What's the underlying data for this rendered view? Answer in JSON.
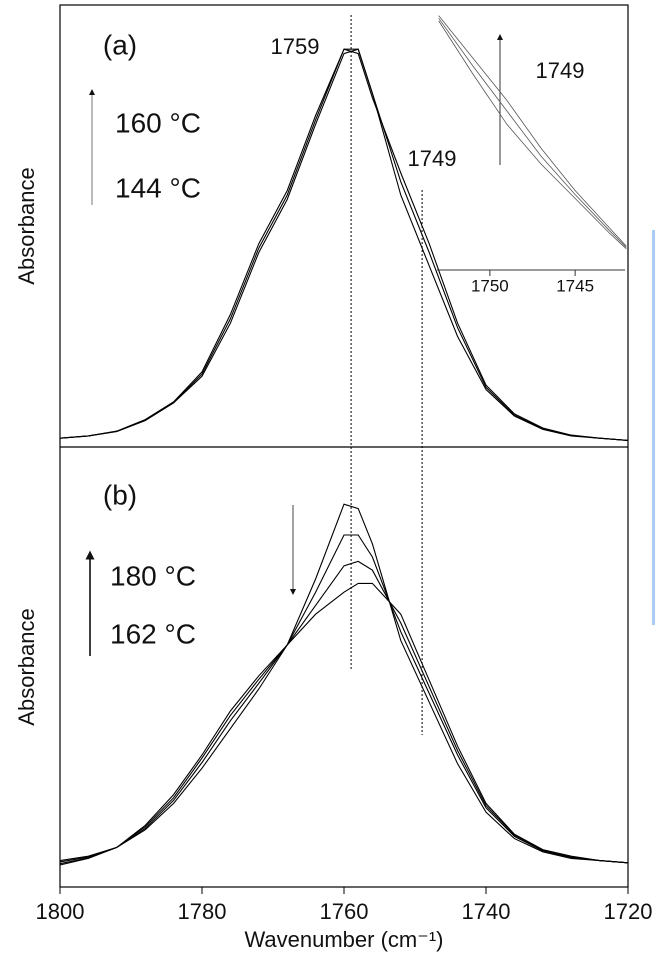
{
  "chart_data": [
    {
      "type": "line",
      "ylabel": "Absorbance",
      "annotations": [
        "(a)",
        "1759",
        "1749",
        "160 °C",
        "144 °C"
      ],
      "xlim": [
        1800,
        1720
      ],
      "ylim": [
        0,
        1
      ],
      "x": [
        1800,
        1796,
        1792,
        1788,
        1784,
        1780,
        1776,
        1772,
        1768,
        1764,
        1760,
        1758,
        1756,
        1752,
        1748,
        1744,
        1740,
        1736,
        1732,
        1728,
        1724,
        1720
      ],
      "series": [
        {
          "color": "#000000",
          "values": [
            0.02,
            0.025,
            0.035,
            0.06,
            0.1,
            0.16,
            0.28,
            0.44,
            0.56,
            0.73,
            0.89,
            0.9,
            0.8,
            0.57,
            0.41,
            0.25,
            0.13,
            0.07,
            0.04,
            0.025,
            0.02,
            0.015
          ]
        },
        {
          "color": "#000000",
          "values": [
            0.02,
            0.025,
            0.035,
            0.06,
            0.1,
            0.165,
            0.29,
            0.45,
            0.57,
            0.74,
            0.9,
            0.9,
            0.8,
            0.6,
            0.44,
            0.27,
            0.135,
            0.072,
            0.042,
            0.026,
            0.02,
            0.015
          ]
        },
        {
          "color": "#000000",
          "values": [
            0.02,
            0.025,
            0.036,
            0.062,
            0.102,
            0.17,
            0.3,
            0.46,
            0.58,
            0.75,
            0.9,
            0.89,
            0.79,
            0.62,
            0.46,
            0.28,
            0.14,
            0.075,
            0.043,
            0.027,
            0.02,
            0.015
          ]
        }
      ],
      "reference_lines_x": [
        1759,
        1749
      ]
    },
    {
      "type": "line",
      "ylabel": "Absorbance",
      "xlabel": "Wavenumber (cm⁻¹)",
      "annotations": [
        "(b)",
        "180 °C",
        "162 °C"
      ],
      "xlim": [
        1800,
        1720
      ],
      "ylim": [
        0,
        1
      ],
      "xticks": [
        1800,
        1780,
        1760,
        1740,
        1720
      ],
      "x": [
        1800,
        1796,
        1792,
        1788,
        1784,
        1780,
        1776,
        1772,
        1768,
        1764,
        1760,
        1758,
        1756,
        1752,
        1748,
        1744,
        1740,
        1736,
        1732,
        1728,
        1724,
        1720
      ],
      "series": [
        {
          "color": "#000000",
          "values": [
            0.06,
            0.07,
            0.09,
            0.13,
            0.19,
            0.27,
            0.36,
            0.45,
            0.55,
            0.7,
            0.87,
            0.86,
            0.78,
            0.56,
            0.42,
            0.28,
            0.17,
            0.11,
            0.08,
            0.065,
            0.06,
            0.055
          ]
        },
        {
          "color": "#000000",
          "values": [
            0.057,
            0.068,
            0.09,
            0.133,
            0.197,
            0.283,
            0.378,
            0.463,
            0.55,
            0.67,
            0.8,
            0.8,
            0.75,
            0.58,
            0.44,
            0.3,
            0.18,
            0.115,
            0.082,
            0.067,
            0.06,
            0.055
          ]
        },
        {
          "color": "#000000",
          "values": [
            0.053,
            0.066,
            0.09,
            0.137,
            0.203,
            0.293,
            0.39,
            0.472,
            0.55,
            0.64,
            0.73,
            0.74,
            0.72,
            0.6,
            0.455,
            0.31,
            0.185,
            0.118,
            0.083,
            0.068,
            0.06,
            0.055
          ]
        },
        {
          "color": "#000000",
          "values": [
            0.05,
            0.065,
            0.09,
            0.14,
            0.21,
            0.3,
            0.4,
            0.48,
            0.55,
            0.62,
            0.67,
            0.69,
            0.69,
            0.62,
            0.47,
            0.32,
            0.19,
            0.12,
            0.085,
            0.07,
            0.06,
            0.055
          ]
        }
      ]
    },
    {
      "type": "line",
      "annotations": [
        "1749"
      ],
      "xlim": [
        1753.1,
        1741.9
      ],
      "ylim": [
        0,
        1
      ],
      "xticks": [
        1750,
        1745
      ],
      "x": [
        1753,
        1751,
        1749,
        1747,
        1745,
        1743,
        1742
      ],
      "series": [
        {
          "color": "#555555",
          "values": [
            0.94,
            0.74,
            0.55,
            0.4,
            0.27,
            0.14,
            0.08
          ]
        },
        {
          "color": "#555555",
          "values": [
            0.95,
            0.77,
            0.6,
            0.43,
            0.285,
            0.15,
            0.085
          ]
        },
        {
          "color": "#555555",
          "values": [
            0.96,
            0.8,
            0.64,
            0.46,
            0.3,
            0.16,
            0.09
          ]
        }
      ]
    }
  ]
}
